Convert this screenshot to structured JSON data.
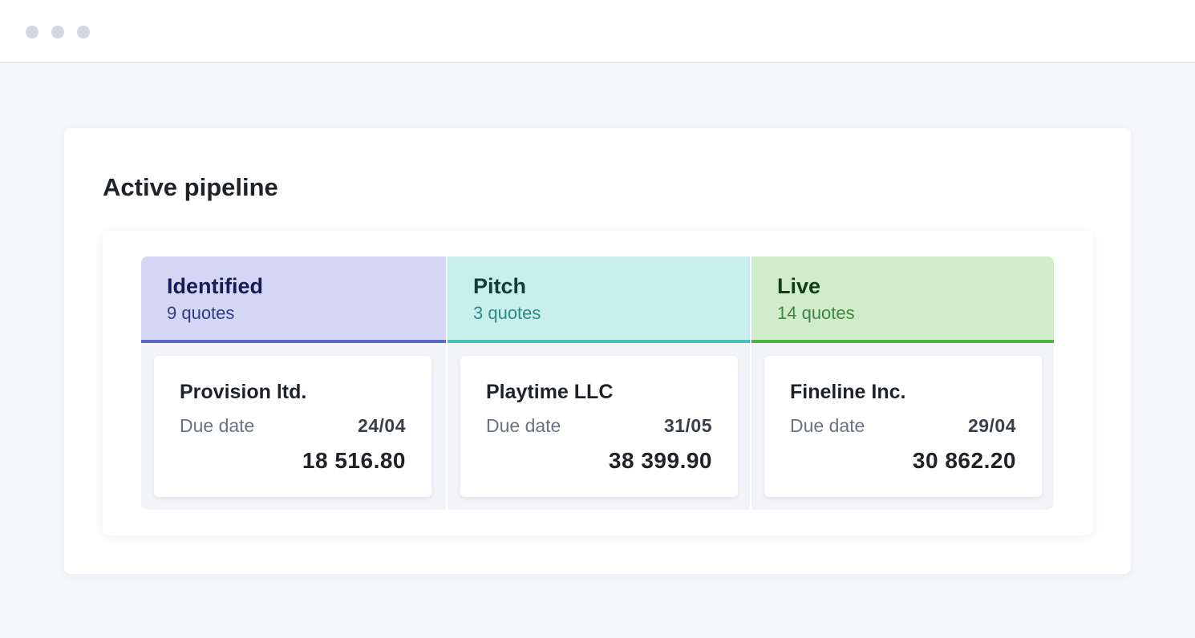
{
  "window": {
    "controls": [
      "window-dot",
      "window-dot",
      "window-dot"
    ]
  },
  "page": {
    "title": "Active pipeline"
  },
  "pipeline": {
    "columns": [
      {
        "title": "Identified",
        "count": "9 quotes",
        "color": "#5c67c5",
        "card": {
          "client": "Provision ltd.",
          "due_label": "Due date",
          "due_value": "24/04",
          "amount": "18 516.80"
        }
      },
      {
        "title": "Pitch",
        "count": "3 quotes",
        "color": "#4cbfbb",
        "card": {
          "client": "Playtime LLC",
          "due_label": "Due date",
          "due_value": "31/05",
          "amount": "38 399.90"
        }
      },
      {
        "title": "Live",
        "count": "14 quotes",
        "color": "#4fb447",
        "card": {
          "client": "Fineline Inc.",
          "due_label": "Due date",
          "due_value": "29/04",
          "amount": "30 862.20"
        }
      }
    ]
  }
}
